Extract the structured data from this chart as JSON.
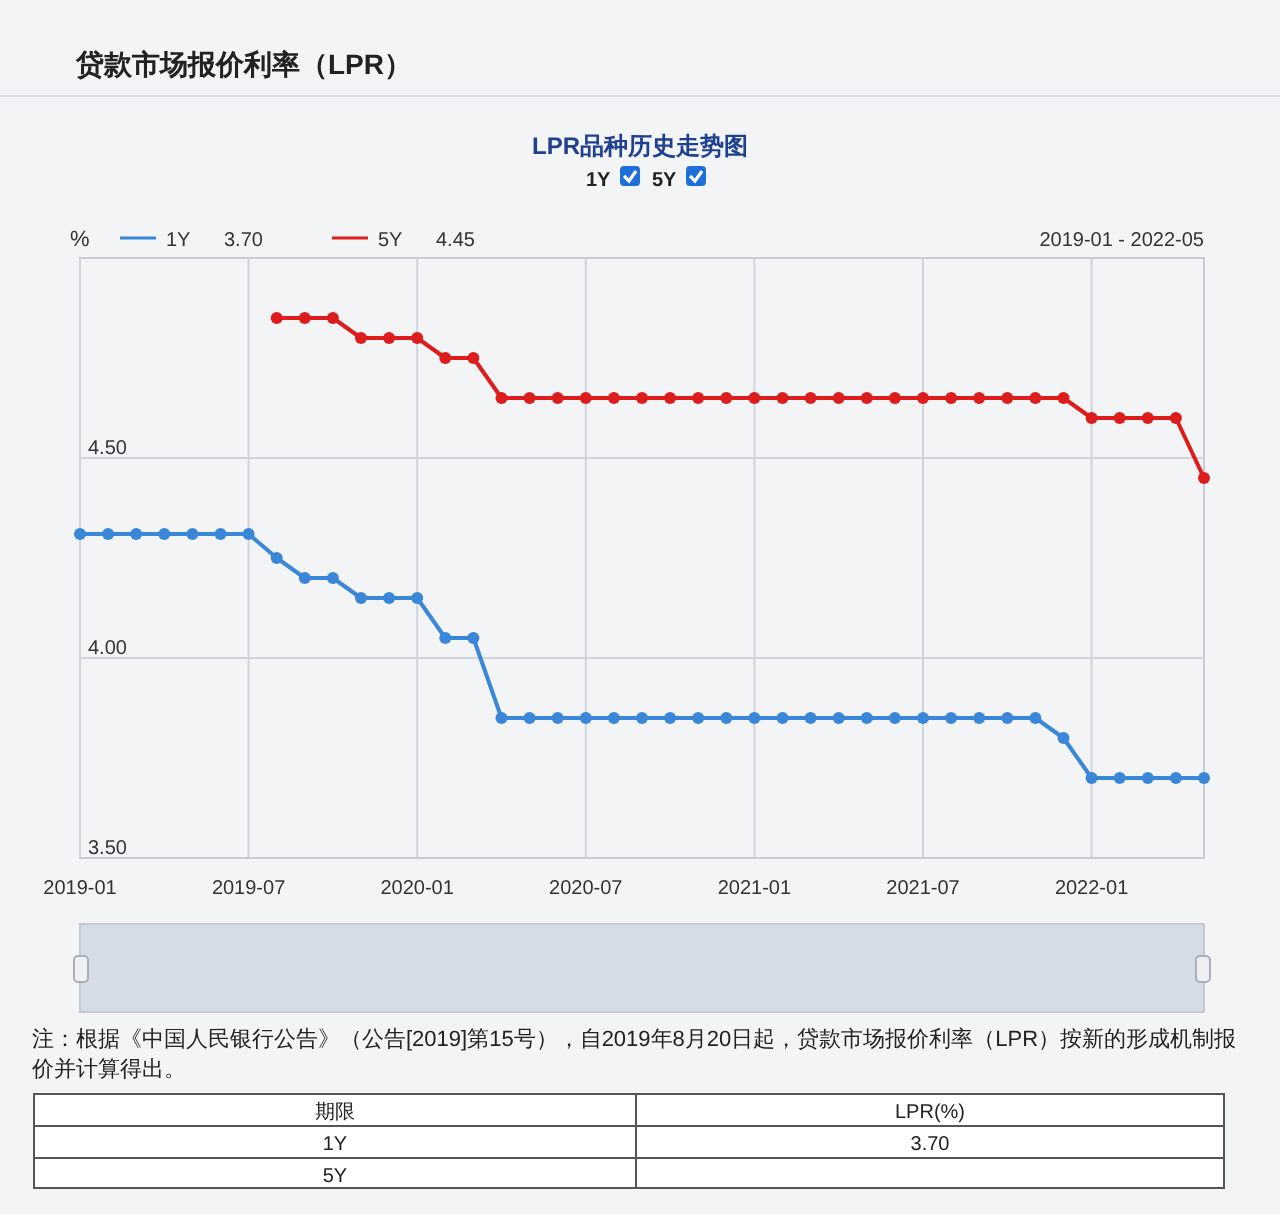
{
  "chart_data": {
    "type": "line",
    "title": "贷款市场报价利率（LPR）",
    "subtitle": "LPR品种历史走势图",
    "ylabel": "%",
    "x": [
      "2019-01",
      "2019-02",
      "2019-03",
      "2019-04",
      "2019-05",
      "2019-06",
      "2019-07",
      "2019-08",
      "2019-09",
      "2019-10",
      "2019-11",
      "2019-12",
      "2020-01",
      "2020-02",
      "2020-03",
      "2020-04",
      "2020-05",
      "2020-06",
      "2020-07",
      "2020-08",
      "2020-09",
      "2020-10",
      "2020-11",
      "2020-12",
      "2021-01",
      "2021-02",
      "2021-03",
      "2021-04",
      "2021-05",
      "2021-06",
      "2021-07",
      "2021-08",
      "2021-09",
      "2021-10",
      "2021-11",
      "2021-12",
      "2022-01",
      "2022-02",
      "2022-03",
      "2022-04",
      "2022-05"
    ],
    "series": [
      {
        "name": "1Y",
        "color": "#3a86d8",
        "values": [
          4.31,
          4.31,
          4.31,
          4.31,
          4.31,
          4.31,
          4.31,
          4.25,
          4.2,
          4.2,
          4.15,
          4.15,
          4.15,
          4.05,
          4.05,
          3.85,
          3.85,
          3.85,
          3.85,
          3.85,
          3.85,
          3.85,
          3.85,
          3.85,
          3.85,
          3.85,
          3.85,
          3.85,
          3.85,
          3.85,
          3.85,
          3.85,
          3.85,
          3.85,
          3.85,
          3.8,
          3.7,
          3.7,
          3.7,
          3.7,
          3.7
        ]
      },
      {
        "name": "5Y",
        "color": "#dd1c1c",
        "values": [
          null,
          null,
          null,
          null,
          null,
          null,
          null,
          4.85,
          4.85,
          4.85,
          4.8,
          4.8,
          4.8,
          4.75,
          4.75,
          4.65,
          4.65,
          4.65,
          4.65,
          4.65,
          4.65,
          4.65,
          4.65,
          4.65,
          4.65,
          4.65,
          4.65,
          4.65,
          4.65,
          4.65,
          4.65,
          4.65,
          4.65,
          4.65,
          4.65,
          4.65,
          4.6,
          4.6,
          4.6,
          4.6,
          4.45
        ]
      }
    ],
    "xlim": [
      "2019-01",
      "2022-05"
    ],
    "xticks": [
      "2019-01",
      "2019-07",
      "2020-01",
      "2020-07",
      "2021-01",
      "2021-07",
      "2022-01"
    ],
    "ylim": [
      3.5,
      5.0
    ],
    "yticks": [
      {
        "value": 3.5,
        "label": "3.50"
      },
      {
        "value": 4.0,
        "label": "4.00"
      },
      {
        "value": 4.5,
        "label": "4.50"
      }
    ],
    "grid": true,
    "legend": "top left",
    "marker": "circle",
    "line_style": "solid",
    "annotations": [
      "3.70",
      "4.45",
      "1Y",
      "5Y",
      "2019-01 - 2022-05",
      "注：根据《中国人民银行公告》（公告[2019]第15号），自2019年8月20日起，贷款市场报价利率（LPR）按新的形成机制报价并计算得出。",
      "期限",
      "LPR(%)",
      "1Y",
      "3.70",
      "5Y"
    ]
  }
}
